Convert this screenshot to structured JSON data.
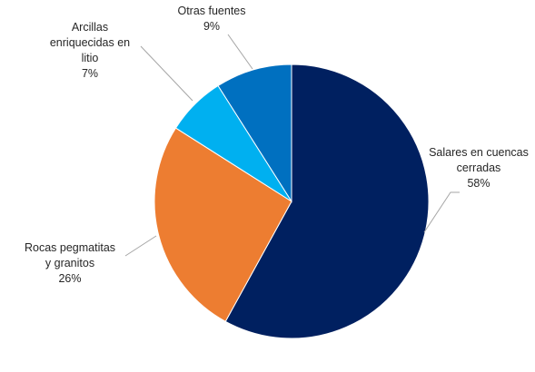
{
  "chart_data": {
    "type": "pie",
    "title": "",
    "slices": [
      {
        "label_lines": [
          "Salares en cuencas",
          "cerradas"
        ],
        "pct_label": "58%",
        "value": 58,
        "color": "#002060"
      },
      {
        "label_lines": [
          "Rocas pegmatitas",
          "y granitos"
        ],
        "pct_label": "26%",
        "value": 26,
        "color": "#ED7D31"
      },
      {
        "label_lines": [
          "Arcillas",
          "enriquecidas en",
          "litio"
        ],
        "pct_label": "7%",
        "value": 7,
        "color": "#00B0F0"
      },
      {
        "label_lines": [
          "Otras fuentes"
        ],
        "pct_label": "9%",
        "value": 9,
        "color": "#0070C0"
      }
    ],
    "start_angle": "12 o'clock",
    "direction": "clockwise",
    "legend": "none"
  }
}
